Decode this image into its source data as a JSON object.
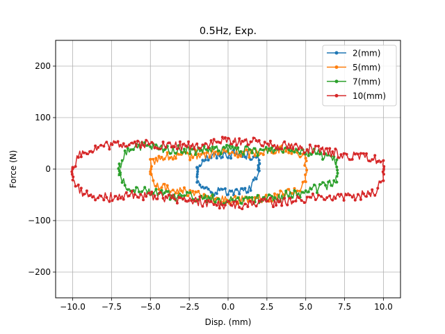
{
  "chart_data": {
    "type": "line",
    "title": "0.5Hz, Exp.",
    "xlabel": "Disp. (mm)",
    "ylabel": "Force (N)",
    "xlim": [
      -11.1,
      11.1
    ],
    "ylim": [
      -250,
      250
    ],
    "xticks": [
      -10.0,
      -7.5,
      -5.0,
      -2.5,
      0.0,
      2.5,
      5.0,
      7.5,
      10.0
    ],
    "xtick_labels": [
      "−10.0",
      "−7.5",
      "−5.0",
      "−2.5",
      "0.0",
      "2.5",
      "5.0",
      "7.5",
      "10.0"
    ],
    "yticks": [
      -200,
      -100,
      0,
      100,
      200
    ],
    "ytick_labels": [
      "−200",
      "−100",
      "0",
      "100",
      "200"
    ],
    "grid": true,
    "legend_position": "top-right",
    "series": [
      {
        "name": "2(mm)",
        "color": "#1f77b4",
        "amplitude": 2,
        "upper": [
          [
            -2.0,
            5
          ],
          [
            -1.5,
            22
          ],
          [
            -1.0,
            25
          ],
          [
            0.0,
            30
          ],
          [
            1.0,
            28
          ],
          [
            1.5,
            26
          ],
          [
            2.0,
            15
          ]
        ],
        "lower": [
          [
            2.0,
            -5
          ],
          [
            1.5,
            -38
          ],
          [
            1.0,
            -42
          ],
          [
            0.0,
            -45
          ],
          [
            -1.0,
            -42
          ],
          [
            -1.5,
            -40
          ],
          [
            -2.0,
            -20
          ]
        ]
      },
      {
        "name": "5(mm)",
        "color": "#ff7f0e",
        "amplitude": 5,
        "upper": [
          [
            -5.0,
            10
          ],
          [
            -4.5,
            22
          ],
          [
            -3.0,
            25
          ],
          [
            -1.0,
            30
          ],
          [
            0.0,
            32
          ],
          [
            1.0,
            30
          ],
          [
            3.0,
            38
          ],
          [
            4.0,
            40
          ],
          [
            5.0,
            25
          ]
        ],
        "lower": [
          [
            5.0,
            -20
          ],
          [
            4.5,
            -40
          ],
          [
            3.0,
            -55
          ],
          [
            1.0,
            -60
          ],
          [
            0.0,
            -62
          ],
          [
            -1.0,
            -58
          ],
          [
            -3.0,
            -42
          ],
          [
            -4.5,
            -35
          ],
          [
            -5.0,
            -15
          ]
        ]
      },
      {
        "name": "7(mm)",
        "color": "#2ca02c",
        "amplitude": 7,
        "upper": [
          [
            -7.0,
            5
          ],
          [
            -6.5,
            35
          ],
          [
            -6.0,
            45
          ],
          [
            -4.0,
            38
          ],
          [
            -2.0,
            35
          ],
          [
            0.0,
            38
          ],
          [
            2.0,
            35
          ],
          [
            4.0,
            42
          ],
          [
            5.0,
            35
          ],
          [
            6.5,
            25
          ],
          [
            7.0,
            10
          ]
        ],
        "lower": [
          [
            7.0,
            -20
          ],
          [
            6.5,
            -30
          ],
          [
            5.0,
            -45
          ],
          [
            3.0,
            -55
          ],
          [
            1.0,
            -62
          ],
          [
            0.0,
            -60
          ],
          [
            -2.0,
            -55
          ],
          [
            -4.0,
            -50
          ],
          [
            -6.0,
            -40
          ],
          [
            -6.5,
            -35
          ],
          [
            -7.0,
            -15
          ]
        ]
      },
      {
        "name": "10(mm)",
        "color": "#d62728",
        "amplitude": 10,
        "upper": [
          [
            -10.0,
            5
          ],
          [
            -9.5,
            30
          ],
          [
            -8.0,
            45
          ],
          [
            -6.0,
            50
          ],
          [
            -4.0,
            45
          ],
          [
            -2.0,
            45
          ],
          [
            0.0,
            55
          ],
          [
            2.0,
            52
          ],
          [
            4.0,
            45
          ],
          [
            6.0,
            35
          ],
          [
            8.0,
            25
          ],
          [
            9.5,
            20
          ],
          [
            10.0,
            10
          ]
        ],
        "lower": [
          [
            10.0,
            -15
          ],
          [
            9.5,
            -45
          ],
          [
            8.0,
            -55
          ],
          [
            6.0,
            -55
          ],
          [
            4.0,
            -60
          ],
          [
            2.0,
            -68
          ],
          [
            0.0,
            -70
          ],
          [
            -2.0,
            -62
          ],
          [
            -4.0,
            -55
          ],
          [
            -6.0,
            -50
          ],
          [
            -8.0,
            -55
          ],
          [
            -9.5,
            -45
          ],
          [
            -10.0,
            -20
          ]
        ]
      }
    ]
  }
}
